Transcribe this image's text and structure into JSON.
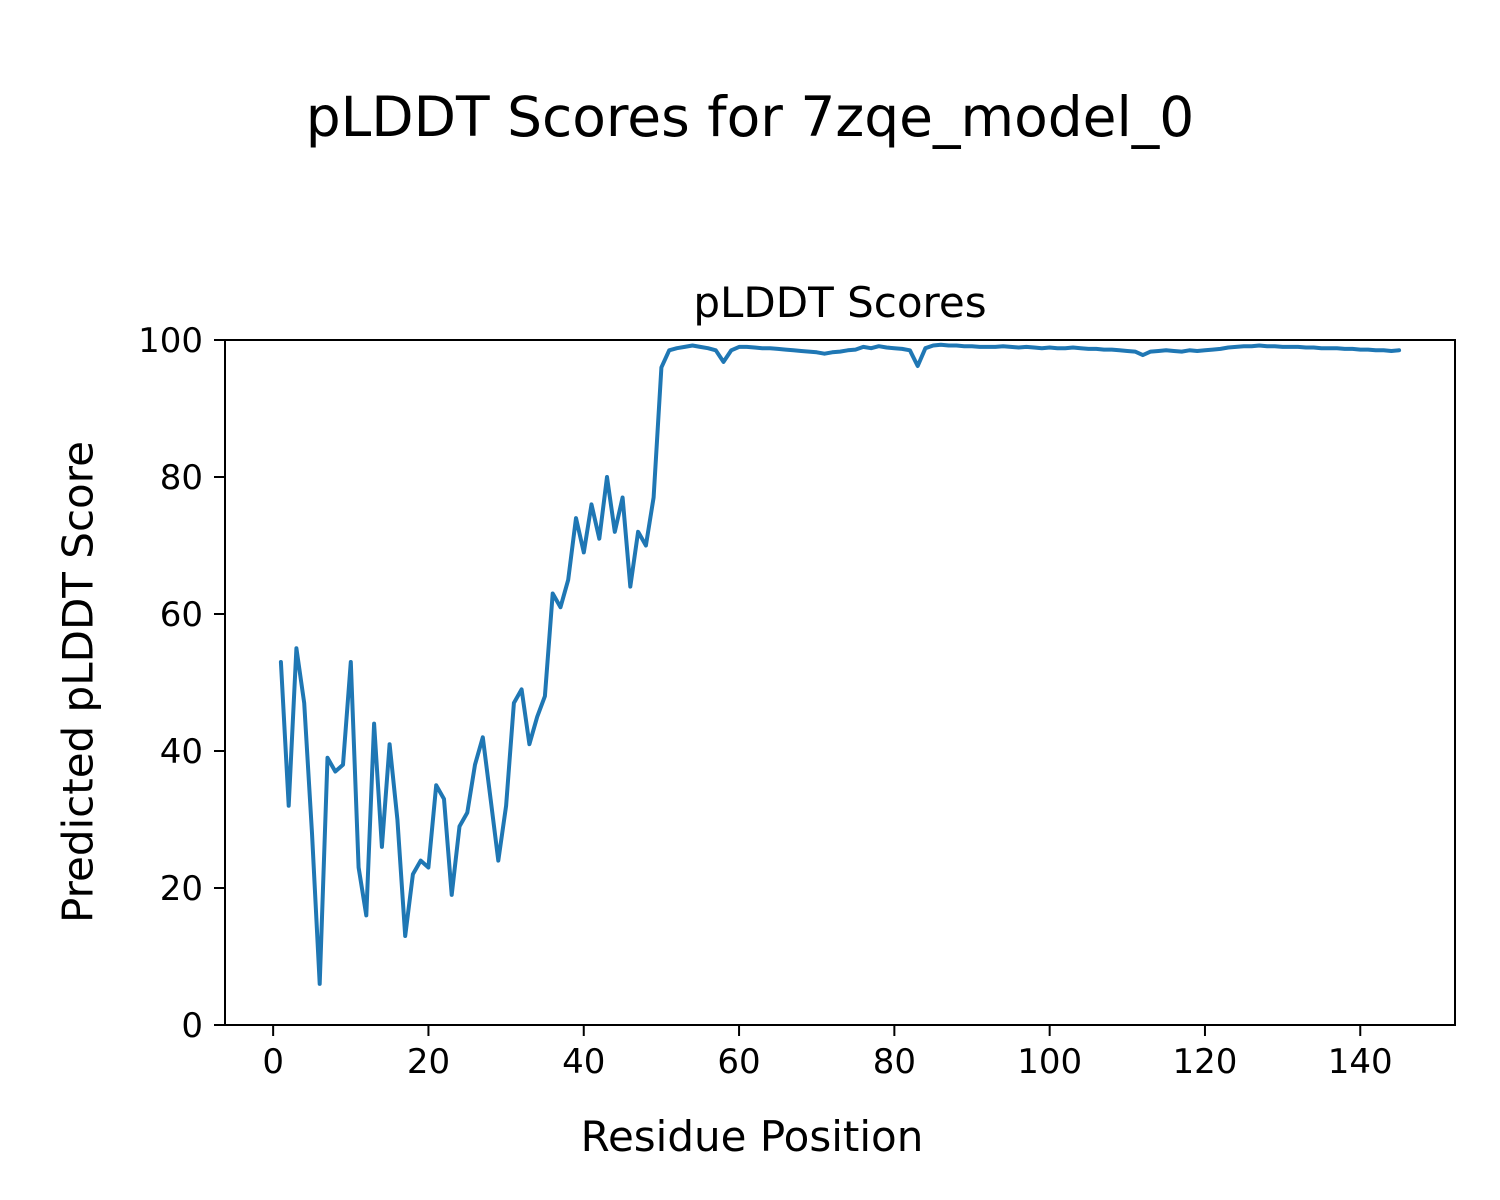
{
  "figure": {
    "suptitle": "pLDDT Scores for 7zqe_model_0",
    "axes_title": "pLDDT Scores",
    "xlabel": "Residue Position",
    "ylabel": "Predicted pLDDT Score"
  },
  "chart_data": {
    "type": "line",
    "title": "pLDDT Scores",
    "suptitle": "pLDDT Scores for 7zqe_model_0",
    "xlabel": "Residue Position",
    "ylabel": "Predicted pLDDT Score",
    "line_color": "#1f77b4",
    "line_width": 4,
    "grid": false,
    "legend": "none",
    "xlim": [
      -6.2,
      152.2
    ],
    "ylim": [
      0,
      100
    ],
    "xticks": [
      0,
      20,
      40,
      60,
      80,
      100,
      120,
      140
    ],
    "yticks": [
      0,
      20,
      40,
      60,
      80,
      100
    ],
    "x_first": 1,
    "x_step": 1,
    "values": [
      53,
      32,
      55,
      47,
      28,
      6,
      39,
      37,
      38,
      53,
      23,
      16,
      44,
      26,
      41,
      30,
      13,
      22,
      24,
      23,
      35,
      33,
      19,
      29,
      31,
      38,
      42,
      33,
      24,
      32,
      47,
      49,
      41,
      45,
      48,
      63,
      61,
      65,
      74,
      69,
      76,
      71,
      80,
      72,
      77,
      64,
      72,
      70,
      77,
      96,
      98.5,
      98.8,
      99.0,
      99.2,
      99.0,
      98.8,
      98.5,
      96.8,
      98.5,
      99.0,
      99.0,
      98.9,
      98.8,
      98.8,
      98.7,
      98.6,
      98.5,
      98.4,
      98.3,
      98.2,
      98.0,
      98.2,
      98.3,
      98.5,
      98.6,
      99.0,
      98.8,
      99.1,
      98.9,
      98.8,
      98.7,
      98.5,
      96.2,
      98.8,
      99.2,
      99.3,
      99.2,
      99.2,
      99.1,
      99.1,
      99.0,
      99.0,
      99.0,
      99.1,
      99.0,
      98.9,
      99.0,
      98.9,
      98.8,
      98.9,
      98.8,
      98.8,
      98.9,
      98.8,
      98.7,
      98.7,
      98.6,
      98.6,
      98.5,
      98.4,
      98.3,
      97.8,
      98.3,
      98.4,
      98.5,
      98.4,
      98.3,
      98.5,
      98.4,
      98.5,
      98.6,
      98.7,
      98.9,
      99.0,
      99.1,
      99.1,
      99.2,
      99.1,
      99.1,
      99.0,
      99.0,
      99.0,
      98.9,
      98.9,
      98.8,
      98.8,
      98.8,
      98.7,
      98.7,
      98.6,
      98.6,
      98.5,
      98.5,
      98.4,
      98.5
    ]
  }
}
